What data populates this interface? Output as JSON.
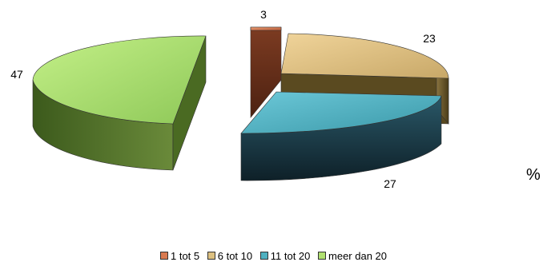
{
  "chart_data": {
    "type": "pie",
    "variant": "3d-exploded",
    "categories": [
      "1 tot 5",
      "6 tot 10",
      "11 tot 20",
      "meer dan 20"
    ],
    "values": [
      3,
      23,
      27,
      47
    ],
    "data_labels": [
      "3",
      "23",
      "27",
      "47"
    ],
    "unit": "%",
    "legend_position": "bottom",
    "colors": [
      "#d97a50",
      "#dcc080",
      "#4fb0c0",
      "#b0e070"
    ],
    "side_colors": [
      "#5a2a18",
      "#6a5a2a",
      "#183848",
      "#3a5a1a"
    ]
  }
}
